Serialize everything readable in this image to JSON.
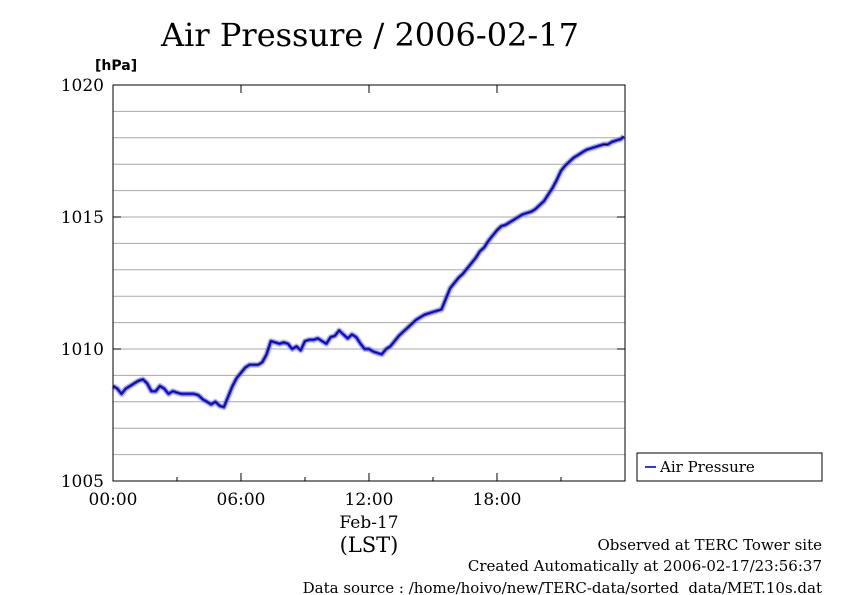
{
  "chart_data": {
    "type": "line",
    "title": "Air Pressure / 2006-02-17",
    "ylabel": "[hPa]",
    "xlabel": "(LST)",
    "date_label": "Feb-17",
    "ylim": [
      1005,
      1020
    ],
    "xlim": [
      0,
      24
    ],
    "x_unit": "hours",
    "y_ticks": [
      "1005",
      "1010",
      "1015",
      "1020"
    ],
    "x_ticks": [
      "00:00",
      "06:00",
      "12:00",
      "18:00"
    ],
    "grid": true,
    "legend": "right",
    "series": [
      {
        "name": "Air Pressure",
        "color": "#3333ff",
        "x": [
          0.0,
          0.2,
          0.4,
          0.6,
          0.8,
          1.0,
          1.2,
          1.4,
          1.6,
          1.8,
          2.0,
          2.2,
          2.4,
          2.6,
          2.8,
          3.0,
          3.2,
          3.4,
          3.6,
          3.8,
          4.0,
          4.2,
          4.4,
          4.6,
          4.8,
          5.0,
          5.2,
          5.4,
          5.6,
          5.8,
          6.0,
          6.2,
          6.4,
          6.6,
          6.8,
          7.0,
          7.2,
          7.4,
          7.6,
          7.8,
          8.0,
          8.2,
          8.4,
          8.6,
          8.8,
          9.0,
          9.2,
          9.4,
          9.6,
          9.8,
          10.0,
          10.2,
          10.4,
          10.6,
          10.8,
          11.0,
          11.2,
          11.4,
          11.6,
          11.8,
          12.0,
          12.2,
          12.4,
          12.6,
          12.8,
          13.0,
          13.2,
          13.4,
          13.6,
          13.8,
          14.0,
          14.2,
          14.4,
          14.6,
          14.8,
          15.0,
          15.2,
          15.4,
          15.6,
          15.8,
          16.0,
          16.2,
          16.4,
          16.6,
          16.8,
          17.0,
          17.2,
          17.4,
          17.6,
          17.8,
          18.0,
          18.2,
          18.4,
          18.6,
          18.8,
          19.0,
          19.2,
          19.4,
          19.6,
          19.8,
          20.0,
          20.2,
          20.4,
          20.6,
          20.8,
          21.0,
          21.2,
          21.4,
          21.6,
          21.8,
          22.0,
          22.2,
          22.4,
          22.6,
          22.8,
          23.0,
          23.2,
          23.4,
          23.6,
          23.8,
          23.95
        ],
        "values": [
          1008.6,
          1008.5,
          1008.3,
          1008.5,
          1008.6,
          1008.7,
          1008.8,
          1008.85,
          1008.7,
          1008.4,
          1008.4,
          1008.6,
          1008.5,
          1008.3,
          1008.4,
          1008.35,
          1008.3,
          1008.3,
          1008.3,
          1008.3,
          1008.25,
          1008.1,
          1008.0,
          1007.9,
          1008.0,
          1007.85,
          1007.8,
          1008.2,
          1008.6,
          1008.9,
          1009.1,
          1009.3,
          1009.4,
          1009.4,
          1009.4,
          1009.5,
          1009.8,
          1010.3,
          1010.25,
          1010.2,
          1010.25,
          1010.2,
          1010.0,
          1010.1,
          1009.95,
          1010.3,
          1010.35,
          1010.35,
          1010.4,
          1010.3,
          1010.2,
          1010.45,
          1010.5,
          1010.7,
          1010.55,
          1010.4,
          1010.55,
          1010.45,
          1010.2,
          1010.0,
          1010.0,
          1009.9,
          1009.85,
          1009.8,
          1010.0,
          1010.1,
          1010.3,
          1010.5,
          1010.65,
          1010.8,
          1010.95,
          1011.1,
          1011.2,
          1011.3,
          1011.35,
          1011.4,
          1011.45,
          1011.5,
          1011.9,
          1012.3,
          1012.5,
          1012.7,
          1012.85,
          1013.05,
          1013.25,
          1013.45,
          1013.7,
          1013.85,
          1014.1,
          1014.3,
          1014.5,
          1014.65,
          1014.7,
          1014.8,
          1014.9,
          1015.0,
          1015.1,
          1015.15,
          1015.2,
          1015.3,
          1015.45,
          1015.6,
          1015.85,
          1016.1,
          1016.4,
          1016.75,
          1016.95,
          1017.1,
          1017.25,
          1017.35,
          1017.45,
          1017.55,
          1017.6,
          1017.65,
          1017.7,
          1017.75,
          1017.75,
          1017.85,
          1017.9,
          1017.95,
          1018.05
        ]
      }
    ]
  },
  "footer": {
    "line1": "Observed at TERC Tower site",
    "line2": "Created Automatically at 2006-02-17/23:56:37",
    "line3": "Data source : /home/hoivo/new/TERC-data/sorted  data/MET.10s.dat"
  }
}
